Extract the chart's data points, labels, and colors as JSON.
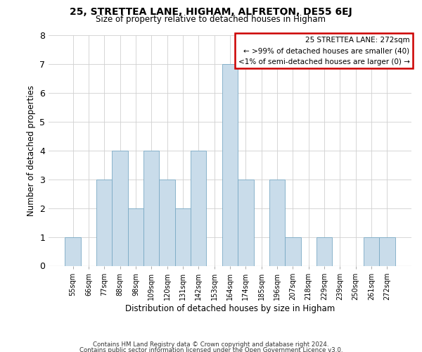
{
  "title": "25, STRETTEA LANE, HIGHAM, ALFRETON, DE55 6EJ",
  "subtitle": "Size of property relative to detached houses in Higham",
  "xlabel": "Distribution of detached houses by size in Higham",
  "ylabel": "Number of detached properties",
  "bar_labels": [
    "55sqm",
    "66sqm",
    "77sqm",
    "88sqm",
    "98sqm",
    "109sqm",
    "120sqm",
    "131sqm",
    "142sqm",
    "153sqm",
    "164sqm",
    "174sqm",
    "185sqm",
    "196sqm",
    "207sqm",
    "218sqm",
    "229sqm",
    "239sqm",
    "250sqm",
    "261sqm",
    "272sqm"
  ],
  "bar_values": [
    1,
    0,
    3,
    4,
    2,
    4,
    3,
    2,
    4,
    0,
    7,
    3,
    0,
    3,
    1,
    0,
    1,
    0,
    0,
    1,
    1
  ],
  "bar_color": "#c9dcea",
  "bar_edge_color": "#7aaac5",
  "ylim": [
    0,
    8
  ],
  "yticks": [
    0,
    1,
    2,
    3,
    4,
    5,
    6,
    7,
    8
  ],
  "legend_border_color": "#cc0000",
  "legend_title": "25 STRETTEA LANE: 272sqm",
  "legend_line1": "← >99% of detached houses are smaller (40)",
  "legend_line2": "<1% of semi-detached houses are larger (0) →",
  "footer_line1": "Contains HM Land Registry data © Crown copyright and database right 2024.",
  "footer_line2": "Contains public sector information licensed under the Open Government Licence v3.0.",
  "background_color": "#ffffff",
  "grid_color": "#d0d0d0"
}
